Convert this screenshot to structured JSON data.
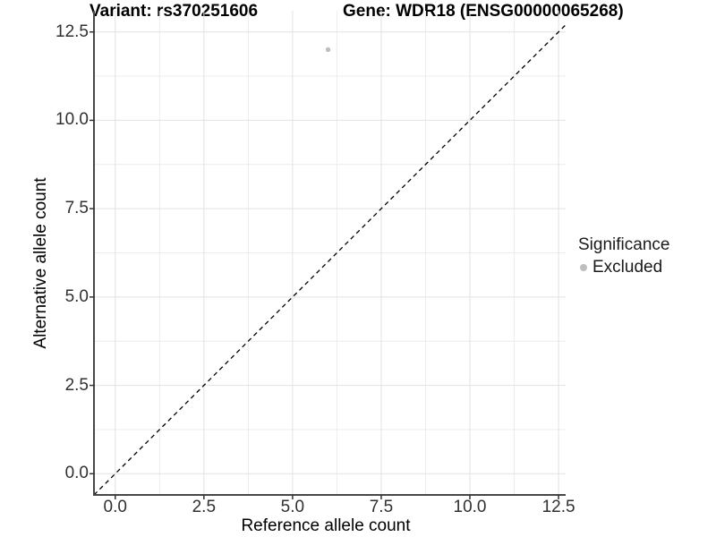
{
  "figure": {
    "title_left": "Variant: rs370251606",
    "title_right": "Gene: WDR18 (ENSG00000065268)"
  },
  "chart_data": {
    "type": "scatter",
    "title": "Variant: rs370251606    Gene: WDR18 (ENSG00000065268)",
    "xlabel": "Reference allele count",
    "ylabel": "Alternative allele count",
    "xlim": [
      -0.6,
      12.7
    ],
    "ylim": [
      -0.6,
      13.1
    ],
    "x_ticks": [
      0.0,
      2.5,
      5.0,
      7.5,
      10.0,
      12.5
    ],
    "x_tick_labels": [
      "0.0",
      "2.5",
      "5.0",
      "7.5",
      "10.0",
      "12.5"
    ],
    "y_ticks": [
      0.0,
      2.5,
      5.0,
      7.5,
      10.0,
      12.5
    ],
    "y_tick_labels": [
      "0.0",
      "2.5",
      "5.0",
      "7.5",
      "10.0",
      "12.5"
    ],
    "grid": {
      "major": true,
      "minor": true,
      "minor_positions": [
        1.25,
        3.75,
        6.25,
        8.75,
        11.25
      ]
    },
    "identity_line": {
      "type": "abline y=x",
      "style": "dashed",
      "color": "#000000"
    },
    "series": [
      {
        "name": "Excluded",
        "color": "#bebebe",
        "points": [
          {
            "x": 6,
            "y": 12
          }
        ]
      }
    ],
    "legend": {
      "title": "Significance",
      "position": "right",
      "items": [
        {
          "label": "Excluded",
          "color": "#bebebe"
        }
      ]
    },
    "style": {
      "grid_major_color": "#e2e2e2",
      "grid_minor_color": "#ececec",
      "axis_line_color": "#474747",
      "tick_mark_color": "#333333",
      "point_color": "#bebebe",
      "background": "#ffffff"
    }
  }
}
